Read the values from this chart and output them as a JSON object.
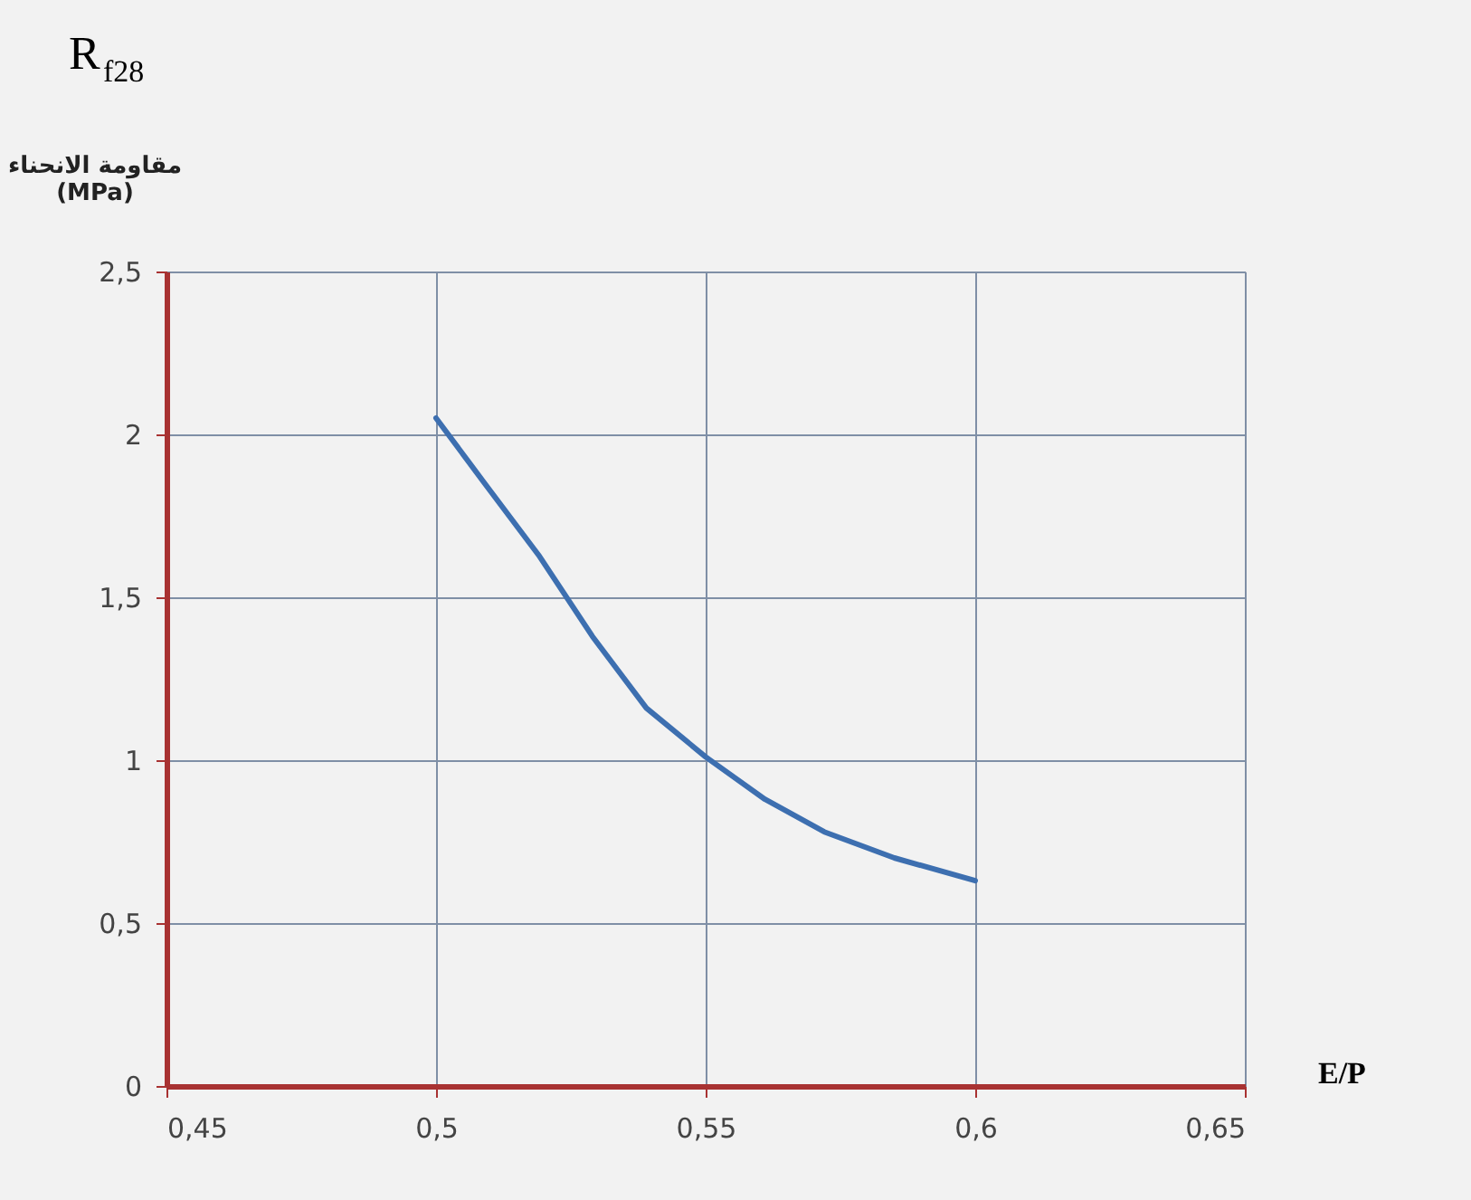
{
  "chart_data": {
    "type": "line",
    "title": "R$_{f28}$",
    "xlabel": "E/P",
    "ylabel": "مقاومة الانحناء (MPa)",
    "x": [
      0.5,
      0.509,
      0.519,
      0.529,
      0.539,
      0.55,
      0.561,
      0.572,
      0.585,
      0.6
    ],
    "series": [
      {
        "color": "#3d6fb0",
        "values": [
          2.05,
          1.85,
          1.63,
          1.38,
          1.16,
          1.01,
          0.88,
          0.78,
          0.7,
          0.63
        ]
      }
    ],
    "xlim": [
      0.45,
      0.65
    ],
    "xticks": [
      {
        "value": 0.45,
        "label": "0,45"
      },
      {
        "value": 0.5,
        "label": "0,5"
      },
      {
        "value": 0.55,
        "label": "0,55"
      },
      {
        "value": 0.6,
        "label": "0,6"
      },
      {
        "value": 0.65,
        "label": "0,65"
      }
    ],
    "ylim": [
      0,
      2.5
    ],
    "yticks": [
      0,
      {
        "value": 0.5,
        "label": "0,5"
      },
      1,
      {
        "value": 1.5,
        "label": "1,5"
      },
      2,
      {
        "value": 2.5,
        "label": "2,5"
      }
    ],
    "grid": true,
    "marker": "none",
    "line_style": "solid"
  }
}
